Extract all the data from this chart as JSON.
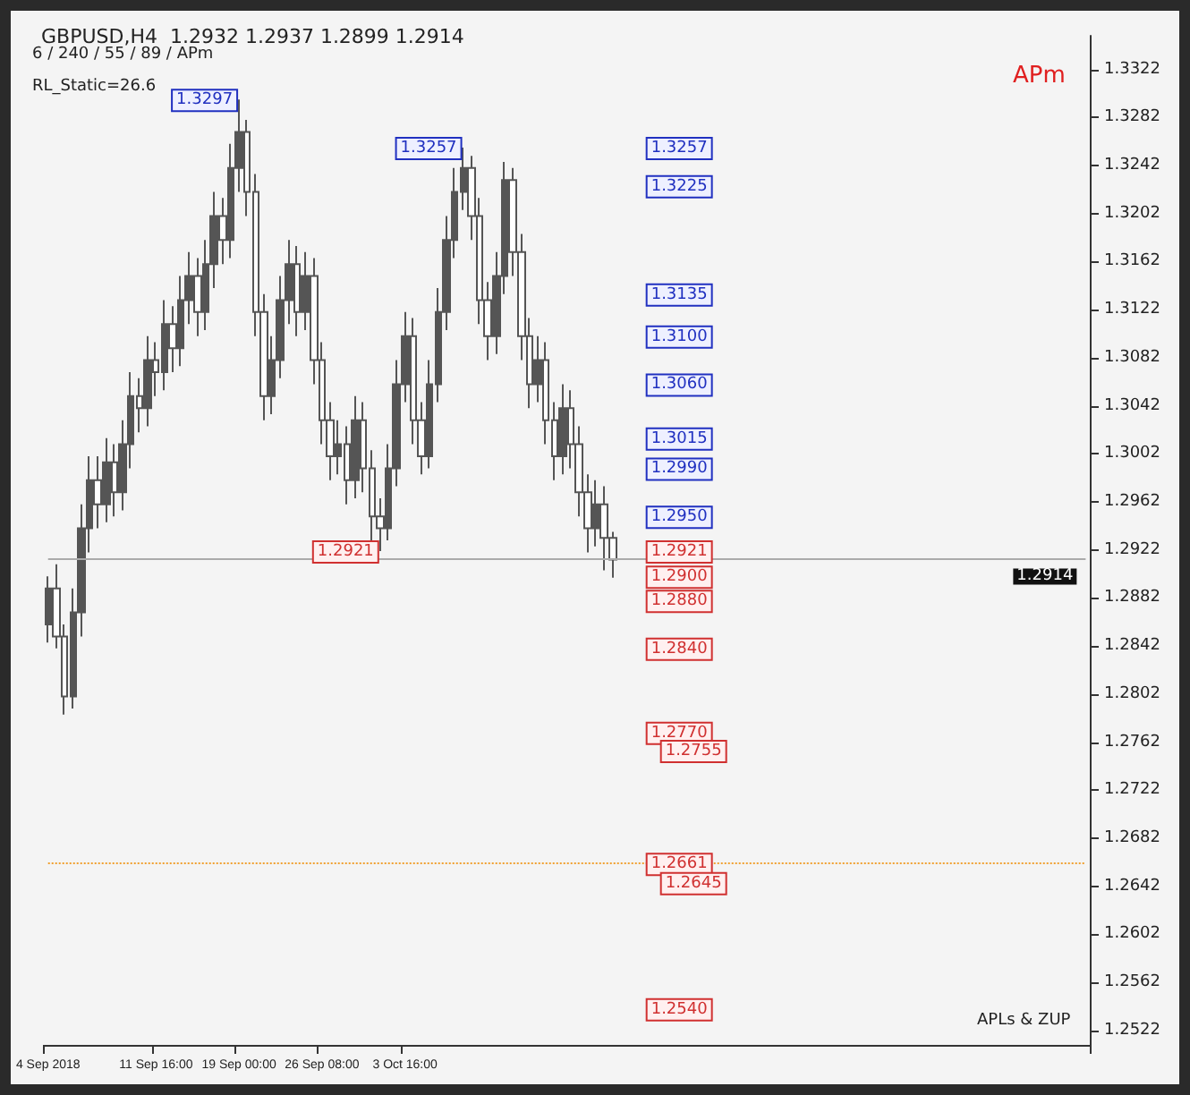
{
  "chart_data": {
    "type": "candlestick",
    "title": "GBPUSD,H4  1.2932 1.2937 1.2899 1.2914",
    "categories": [
      "4 Sep 2018",
      null,
      null,
      null,
      null,
      null,
      null,
      null,
      null,
      null,
      null,
      null,
      null,
      "11 Sep 16:00",
      null,
      null,
      null,
      null,
      null,
      null,
      null,
      null,
      null,
      "19 Sep 00:00",
      null,
      null,
      null,
      null,
      null,
      null,
      null,
      null,
      null,
      "26 Sep 08:00",
      null,
      null,
      null,
      null,
      null,
      null,
      null,
      null,
      null,
      "3 Oct 16:00",
      null,
      null,
      null,
      null,
      null,
      null,
      null,
      null,
      null,
      null,
      null,
      null,
      null,
      null,
      null,
      null,
      null,
      null,
      null,
      null,
      null,
      null,
      null,
      null,
      null,
      null,
      null,
      null,
      null,
      null,
      null,
      null,
      null,
      null,
      null,
      null,
      null,
      null,
      null,
      null,
      null,
      null,
      null,
      null,
      null,
      null,
      null,
      null,
      null,
      null,
      null,
      null,
      null,
      null,
      null,
      null,
      null,
      null,
      null,
      null,
      null,
      null,
      null,
      null,
      null,
      null,
      null,
      null,
      null,
      null,
      null,
      null,
      null,
      null,
      null,
      null,
      null,
      null,
      null,
      null,
      null,
      null
    ],
    "series": [
      {
        "color": "#555555",
        "ohlc": [
          [
            1.286,
            1.29,
            1.2845,
            1.289
          ],
          [
            1.289,
            1.291,
            1.284,
            1.285
          ],
          [
            1.285,
            1.286,
            1.2785,
            1.28
          ],
          [
            1.28,
            1.289,
            1.279,
            1.287
          ],
          [
            1.287,
            1.296,
            1.285,
            1.294
          ],
          [
            1.294,
            1.3,
            1.292,
            1.298
          ],
          [
            1.298,
            1.3,
            1.294,
            1.296
          ],
          [
            1.296,
            1.3015,
            1.2945,
            1.2995
          ],
          [
            1.2995,
            1.301,
            1.295,
            1.297
          ],
          [
            1.297,
            1.303,
            1.2955,
            1.301
          ],
          [
            1.301,
            1.307,
            1.299,
            1.305
          ],
          [
            1.305,
            1.3065,
            1.302,
            1.304
          ],
          [
            1.304,
            1.31,
            1.3025,
            1.308
          ],
          [
            1.308,
            1.3095,
            1.305,
            1.307
          ],
          [
            1.307,
            1.313,
            1.3055,
            1.311
          ],
          [
            1.311,
            1.3125,
            1.307,
            1.309
          ],
          [
            1.309,
            1.315,
            1.3075,
            1.313
          ],
          [
            1.313,
            1.317,
            1.311,
            1.315
          ],
          [
            1.315,
            1.3165,
            1.31,
            1.312
          ],
          [
            1.312,
            1.318,
            1.3105,
            1.316
          ],
          [
            1.316,
            1.322,
            1.314,
            1.32
          ],
          [
            1.32,
            1.3215,
            1.316,
            1.318
          ],
          [
            1.318,
            1.326,
            1.3165,
            1.324
          ],
          [
            1.324,
            1.3297,
            1.322,
            1.327
          ],
          [
            1.327,
            1.328,
            1.32,
            1.322
          ],
          [
            1.322,
            1.3235,
            1.31,
            1.312
          ],
          [
            1.312,
            1.3135,
            1.303,
            1.305
          ],
          [
            1.305,
            1.31,
            1.3035,
            1.308
          ],
          [
            1.308,
            1.315,
            1.3065,
            1.313
          ],
          [
            1.313,
            1.318,
            1.311,
            1.316
          ],
          [
            1.316,
            1.3175,
            1.31,
            1.312
          ],
          [
            1.312,
            1.317,
            1.3105,
            1.315
          ],
          [
            1.315,
            1.3165,
            1.306,
            1.308
          ],
          [
            1.308,
            1.3095,
            1.301,
            1.303
          ],
          [
            1.303,
            1.3045,
            1.298,
            1.3
          ],
          [
            1.3,
            1.303,
            1.2985,
            1.301
          ],
          [
            1.301,
            1.3025,
            1.296,
            1.298
          ],
          [
            1.298,
            1.305,
            1.2965,
            1.303
          ],
          [
            1.303,
            1.3045,
            1.297,
            1.299
          ],
          [
            1.299,
            1.3005,
            1.293,
            1.295
          ],
          [
            1.295,
            1.2965,
            1.2921,
            1.294
          ],
          [
            1.294,
            1.301,
            1.293,
            1.299
          ],
          [
            1.299,
            1.308,
            1.2975,
            1.306
          ],
          [
            1.306,
            1.312,
            1.3045,
            1.31
          ],
          [
            1.31,
            1.3115,
            1.301,
            1.303
          ],
          [
            1.303,
            1.3045,
            1.2985,
            1.3
          ],
          [
            1.3,
            1.308,
            1.299,
            1.306
          ],
          [
            1.306,
            1.314,
            1.3045,
            1.312
          ],
          [
            1.312,
            1.32,
            1.3105,
            1.318
          ],
          [
            1.318,
            1.324,
            1.3165,
            1.322
          ],
          [
            1.322,
            1.3257,
            1.3205,
            1.324
          ],
          [
            1.324,
            1.325,
            1.318,
            1.32
          ],
          [
            1.32,
            1.3215,
            1.311,
            1.313
          ],
          [
            1.313,
            1.3145,
            1.308,
            1.31
          ],
          [
            1.31,
            1.317,
            1.3085,
            1.315
          ],
          [
            1.315,
            1.3245,
            1.3135,
            1.323
          ],
          [
            1.323,
            1.324,
            1.315,
            1.317
          ],
          [
            1.317,
            1.3185,
            1.308,
            1.31
          ],
          [
            1.31,
            1.3115,
            1.304,
            1.306
          ],
          [
            1.306,
            1.31,
            1.3045,
            1.308
          ],
          [
            1.308,
            1.3095,
            1.301,
            1.303
          ],
          [
            1.303,
            1.3045,
            1.298,
            1.3
          ],
          [
            1.3,
            1.306,
            1.2985,
            1.304
          ],
          [
            1.304,
            1.3055,
            1.299,
            1.301
          ],
          [
            1.301,
            1.3025,
            1.295,
            1.297
          ],
          [
            1.297,
            1.2985,
            1.292,
            1.294
          ],
          [
            1.294,
            1.298,
            1.2925,
            1.296
          ],
          [
            1.296,
            1.2975,
            1.2905,
            1.2932
          ],
          [
            1.2932,
            1.2937,
            1.2899,
            1.2914
          ],
          null,
          null,
          null,
          null,
          null,
          null,
          null,
          null,
          null,
          null,
          null,
          null,
          null,
          null,
          null,
          null,
          null,
          null,
          null,
          null,
          null,
          null,
          null,
          null,
          null,
          null,
          null,
          null,
          null,
          null,
          null,
          null,
          null,
          null,
          null,
          null,
          null,
          null,
          null,
          null,
          null,
          null,
          null,
          null,
          null,
          null,
          null,
          null,
          null,
          null,
          null,
          null,
          null,
          null,
          null,
          null,
          null
        ]
      }
    ],
    "ylim": [
      1.251,
      1.335
    ],
    "yticks": [
      1.2522,
      1.2562,
      1.2602,
      1.2642,
      1.2682,
      1.2722,
      1.2762,
      1.2802,
      1.2842,
      1.2882,
      1.2922,
      1.2962,
      1.3002,
      1.3042,
      1.3082,
      1.3122,
      1.3162,
      1.3202,
      1.3242,
      1.3282,
      1.3322
    ],
    "ref_lines": [
      {
        "axis": "y",
        "value": 1.2914,
        "label": "1.2914",
        "color": "#aaaaaa",
        "line_style": "solid"
      },
      {
        "axis": "y",
        "value": 1.2661,
        "color": "#f0a030",
        "line_style": "dotted"
      }
    ],
    "annotations": [
      "6 / 240 / 55 / 89 / APm",
      "RL_Static=26.6",
      "APm",
      "APLs & ZUP",
      {
        "text": "1.3297",
        "y": 1.3297
      },
      {
        "text": "1.3257",
        "y": 1.3257
      },
      {
        "text": "1.2921",
        "y": 1.2921
      },
      {
        "text": "1.3257",
        "y": 1.3257
      },
      {
        "text": "1.3225",
        "y": 1.3225
      },
      {
        "text": "1.3135",
        "y": 1.3135
      },
      {
        "text": "1.3100",
        "y": 1.31
      },
      {
        "text": "1.3060",
        "y": 1.306
      },
      {
        "text": "1.3015",
        "y": 1.3015
      },
      {
        "text": "1.2990",
        "y": 1.299
      },
      {
        "text": "1.2950",
        "y": 1.295
      },
      {
        "text": "1.2921",
        "y": 1.2921
      },
      {
        "text": "1.2900",
        "y": 1.29
      },
      {
        "text": "1.2880",
        "y": 1.288
      },
      {
        "text": "1.2840",
        "y": 1.284
      },
      {
        "text": "1.2770",
        "y": 1.277
      },
      {
        "text": "1.2755",
        "y": 1.2755
      },
      {
        "text": "1.2661",
        "y": 1.2661
      },
      {
        "text": "1.2645",
        "y": 1.2645
      },
      {
        "text": "1.2540",
        "y": 1.254
      }
    ],
    "grid": false
  }
}
